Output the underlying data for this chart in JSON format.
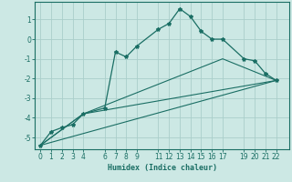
{
  "xlabel": "Humidex (Indice chaleur)",
  "bg_color": "#cce8e4",
  "grid_color": "#aaceca",
  "line_color": "#1a6e64",
  "xlim": [
    -0.5,
    23.2
  ],
  "ylim": [
    -5.6,
    1.9
  ],
  "yticks": [
    1,
    0,
    -1,
    -2,
    -3,
    -4,
    -5
  ],
  "xticks": [
    0,
    1,
    2,
    3,
    4,
    6,
    7,
    8,
    9,
    11,
    12,
    13,
    14,
    15,
    16,
    17,
    19,
    20,
    21,
    22
  ],
  "series1_x": [
    0,
    1,
    2,
    3,
    4,
    6,
    7,
    8,
    9,
    11,
    12,
    13,
    14,
    15,
    16,
    17,
    19,
    20,
    21,
    22
  ],
  "series1_y": [
    -5.4,
    -4.7,
    -4.5,
    -4.35,
    -3.8,
    -3.5,
    -0.65,
    -0.9,
    -0.35,
    0.5,
    0.8,
    1.55,
    1.15,
    0.4,
    0.0,
    0.0,
    -1.0,
    -1.1,
    -1.75,
    -2.1
  ],
  "series2_x": [
    0,
    22
  ],
  "series2_y": [
    -5.4,
    -2.1
  ],
  "series3_x": [
    0,
    4,
    22
  ],
  "series3_y": [
    -5.4,
    -3.8,
    -2.1
  ],
  "series4_x": [
    0,
    4,
    17,
    22
  ],
  "series4_y": [
    -5.4,
    -3.8,
    -1.0,
    -2.1
  ]
}
